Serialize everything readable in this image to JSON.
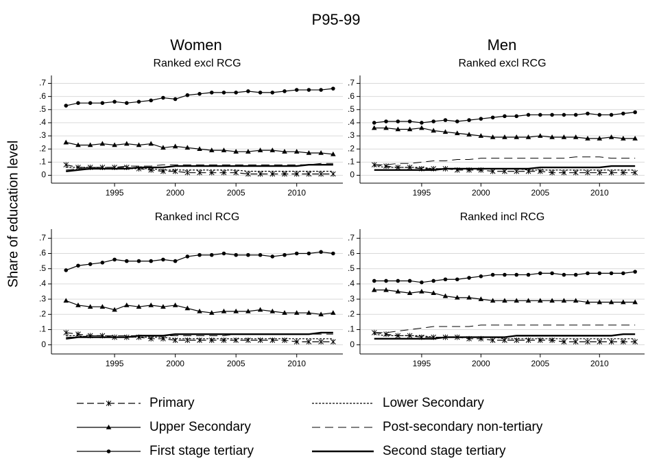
{
  "title": "P95-99",
  "ylabel": "Share of education level",
  "columns": [
    "Women",
    "Men"
  ],
  "legend": [
    {
      "name": "Primary",
      "color": "#000000",
      "line": "dash",
      "marker": "x"
    },
    {
      "name": "Lower Secondary",
      "color": "#000000",
      "line": "dot"
    },
    {
      "name": "Upper Secondary",
      "color": "#000000",
      "line": "solid",
      "marker": "triangle"
    },
    {
      "name": "Post-secondary non-tertiary",
      "color": "#000000",
      "line": "longdash"
    },
    {
      "name": "First stage tertiary",
      "color": "#000000",
      "line": "solid",
      "marker": "circle"
    },
    {
      "name": "Second stage tertiary",
      "color": "#000000",
      "line": "thick"
    }
  ],
  "chart_data": [
    {
      "type": "line",
      "subtitle": "Ranked excl RCG",
      "x": [
        1991,
        1992,
        1993,
        1994,
        1995,
        1996,
        1997,
        1998,
        1999,
        2000,
        2001,
        2002,
        2003,
        2004,
        2005,
        2006,
        2007,
        2008,
        2009,
        2010,
        2011,
        2012,
        2013
      ],
      "xlim": [
        1989.8,
        2013.8
      ],
      "xticks": [
        1995,
        2000,
        2005,
        2010
      ],
      "ylim": [
        -0.06,
        0.76
      ],
      "yticks": [
        0,
        {
          "value": 0.1,
          "label": ".1"
        },
        {
          "value": 0.2,
          "label": ".2"
        },
        {
          "value": 0.3,
          "label": ".3"
        },
        {
          "value": 0.4,
          "label": ".4"
        },
        {
          "value": 0.5,
          "label": ".5"
        },
        {
          "value": 0.6,
          "label": ".6"
        },
        {
          "value": 0.7,
          "label": ".7"
        }
      ],
      "grid": true,
      "series": [
        {
          "values": [
            0.08,
            0.06,
            0.06,
            0.06,
            0.06,
            0.06,
            0.05,
            0.04,
            0.03,
            0.03,
            0.02,
            0.02,
            0.02,
            0.02,
            0.02,
            0.01,
            0.01,
            0.01,
            0.01,
            0.01,
            0.01,
            0.01,
            0.01
          ]
        },
        {
          "values": [
            0.06,
            0.06,
            0.06,
            0.05,
            0.05,
            0.05,
            0.05,
            0.05,
            0.04,
            0.04,
            0.04,
            0.04,
            0.04,
            0.04,
            0.04,
            0.03,
            0.03,
            0.03,
            0.03,
            0.03,
            0.03,
            0.03,
            0.03
          ]
        },
        {
          "values": [
            0.25,
            0.23,
            0.23,
            0.24,
            0.23,
            0.24,
            0.23,
            0.24,
            0.21,
            0.22,
            0.21,
            0.2,
            0.19,
            0.19,
            0.18,
            0.18,
            0.19,
            0.19,
            0.18,
            0.18,
            0.17,
            0.17,
            0.16
          ]
        },
        {
          "values": [
            0.04,
            0.05,
            0.06,
            0.06,
            0.06,
            0.07,
            0.07,
            0.07,
            0.08,
            0.08,
            0.08,
            0.08,
            0.08,
            0.08,
            0.08,
            0.08,
            0.08,
            0.08,
            0.08,
            0.08,
            0.08,
            0.09,
            0.09
          ]
        },
        {
          "values": [
            0.53,
            0.55,
            0.55,
            0.55,
            0.56,
            0.55,
            0.56,
            0.57,
            0.59,
            0.58,
            0.61,
            0.62,
            0.63,
            0.63,
            0.63,
            0.64,
            0.63,
            0.63,
            0.64,
            0.65,
            0.65,
            0.65,
            0.66
          ]
        },
        {
          "values": [
            0.03,
            0.04,
            0.05,
            0.05,
            0.05,
            0.05,
            0.06,
            0.06,
            0.06,
            0.07,
            0.07,
            0.07,
            0.07,
            0.07,
            0.07,
            0.07,
            0.07,
            0.07,
            0.07,
            0.07,
            0.08,
            0.08,
            0.08
          ]
        }
      ]
    },
    {
      "type": "line",
      "subtitle": "Ranked excl RCG",
      "x": [
        1991,
        1992,
        1993,
        1994,
        1995,
        1996,
        1997,
        1998,
        1999,
        2000,
        2001,
        2002,
        2003,
        2004,
        2005,
        2006,
        2007,
        2008,
        2009,
        2010,
        2011,
        2012,
        2013
      ],
      "xlim": [
        1989.8,
        2013.8
      ],
      "xticks": [
        1995,
        2000,
        2005,
        2010
      ],
      "ylim": [
        -0.06,
        0.76
      ],
      "yticks": [
        0,
        {
          "value": 0.1,
          "label": ".1"
        },
        {
          "value": 0.2,
          "label": ".2"
        },
        {
          "value": 0.3,
          "label": ".3"
        },
        {
          "value": 0.4,
          "label": ".4"
        },
        {
          "value": 0.5,
          "label": ".5"
        },
        {
          "value": 0.6,
          "label": ".6"
        },
        {
          "value": 0.7,
          "label": ".7"
        }
      ],
      "grid": true,
      "series": [
        {
          "values": [
            0.08,
            0.07,
            0.06,
            0.06,
            0.05,
            0.05,
            0.05,
            0.04,
            0.04,
            0.04,
            0.03,
            0.03,
            0.03,
            0.03,
            0.03,
            0.02,
            0.02,
            0.02,
            0.02,
            0.02,
            0.02,
            0.02,
            0.02
          ]
        },
        {
          "values": [
            0.07,
            0.06,
            0.06,
            0.06,
            0.06,
            0.05,
            0.05,
            0.05,
            0.05,
            0.05,
            0.05,
            0.05,
            0.05,
            0.04,
            0.04,
            0.04,
            0.04,
            0.04,
            0.04,
            0.04,
            0.04,
            0.04,
            0.04
          ]
        },
        {
          "values": [
            0.36,
            0.36,
            0.35,
            0.35,
            0.36,
            0.34,
            0.33,
            0.32,
            0.31,
            0.3,
            0.29,
            0.29,
            0.29,
            0.29,
            0.3,
            0.29,
            0.29,
            0.29,
            0.28,
            0.28,
            0.29,
            0.28,
            0.28
          ]
        },
        {
          "values": [
            0.08,
            0.08,
            0.09,
            0.09,
            0.1,
            0.11,
            0.11,
            0.12,
            0.12,
            0.13,
            0.13,
            0.13,
            0.13,
            0.13,
            0.13,
            0.13,
            0.13,
            0.14,
            0.14,
            0.14,
            0.13,
            0.13,
            0.13
          ]
        },
        {
          "values": [
            0.4,
            0.41,
            0.41,
            0.41,
            0.4,
            0.41,
            0.42,
            0.41,
            0.42,
            0.43,
            0.44,
            0.45,
            0.45,
            0.46,
            0.46,
            0.46,
            0.46,
            0.46,
            0.47,
            0.46,
            0.46,
            0.47,
            0.48
          ]
        },
        {
          "values": [
            0.04,
            0.04,
            0.04,
            0.04,
            0.04,
            0.04,
            0.05,
            0.05,
            0.05,
            0.05,
            0.05,
            0.05,
            0.05,
            0.05,
            0.06,
            0.06,
            0.06,
            0.06,
            0.06,
            0.06,
            0.07,
            0.07,
            0.07
          ]
        }
      ]
    },
    {
      "type": "line",
      "subtitle": "Ranked incl RCG",
      "x": [
        1991,
        1992,
        1993,
        1994,
        1995,
        1996,
        1997,
        1998,
        1999,
        2000,
        2001,
        2002,
        2003,
        2004,
        2005,
        2006,
        2007,
        2008,
        2009,
        2010,
        2011,
        2012,
        2013
      ],
      "xlim": [
        1989.8,
        2013.8
      ],
      "xticks": [
        1995,
        2000,
        2005,
        2010
      ],
      "ylim": [
        -0.06,
        0.76
      ],
      "yticks": [
        0,
        {
          "value": 0.1,
          "label": ".1"
        },
        {
          "value": 0.2,
          "label": ".2"
        },
        {
          "value": 0.3,
          "label": ".3"
        },
        {
          "value": 0.4,
          "label": ".4"
        },
        {
          "value": 0.5,
          "label": ".5"
        },
        {
          "value": 0.6,
          "label": ".6"
        },
        {
          "value": 0.7,
          "label": ".7"
        }
      ],
      "grid": true,
      "series": [
        {
          "values": [
            0.08,
            0.07,
            0.06,
            0.06,
            0.05,
            0.05,
            0.05,
            0.04,
            0.04,
            0.03,
            0.03,
            0.03,
            0.03,
            0.03,
            0.03,
            0.03,
            0.03,
            0.03,
            0.03,
            0.02,
            0.02,
            0.02,
            0.02
          ]
        },
        {
          "values": [
            0.06,
            0.06,
            0.05,
            0.05,
            0.05,
            0.05,
            0.05,
            0.05,
            0.05,
            0.04,
            0.04,
            0.04,
            0.04,
            0.04,
            0.04,
            0.04,
            0.04,
            0.04,
            0.04,
            0.04,
            0.04,
            0.04,
            0.04
          ]
        },
        {
          "values": [
            0.29,
            0.26,
            0.25,
            0.25,
            0.23,
            0.26,
            0.25,
            0.26,
            0.25,
            0.26,
            0.24,
            0.22,
            0.21,
            0.22,
            0.22,
            0.22,
            0.23,
            0.22,
            0.21,
            0.21,
            0.21,
            0.2,
            0.21
          ]
        },
        {
          "values": [
            0.05,
            0.05,
            0.06,
            0.06,
            0.06,
            0.06,
            0.06,
            0.06,
            0.06,
            0.06,
            0.06,
            0.06,
            0.06,
            0.06,
            0.07,
            0.07,
            0.07,
            0.07,
            0.07,
            0.07,
            0.07,
            0.07,
            0.07
          ]
        },
        {
          "values": [
            0.49,
            0.52,
            0.53,
            0.54,
            0.56,
            0.55,
            0.55,
            0.55,
            0.56,
            0.55,
            0.58,
            0.59,
            0.59,
            0.6,
            0.59,
            0.59,
            0.59,
            0.58,
            0.59,
            0.6,
            0.6,
            0.61,
            0.6
          ]
        },
        {
          "values": [
            0.04,
            0.05,
            0.05,
            0.05,
            0.05,
            0.05,
            0.06,
            0.06,
            0.06,
            0.07,
            0.07,
            0.07,
            0.07,
            0.07,
            0.07,
            0.07,
            0.07,
            0.07,
            0.07,
            0.07,
            0.07,
            0.08,
            0.08
          ]
        }
      ]
    },
    {
      "type": "line",
      "subtitle": "Ranked incl RCG",
      "x": [
        1991,
        1992,
        1993,
        1994,
        1995,
        1996,
        1997,
        1998,
        1999,
        2000,
        2001,
        2002,
        2003,
        2004,
        2005,
        2006,
        2007,
        2008,
        2009,
        2010,
        2011,
        2012,
        2013
      ],
      "xlim": [
        1989.8,
        2013.8
      ],
      "xticks": [
        1995,
        2000,
        2005,
        2010
      ],
      "ylim": [
        -0.06,
        0.76
      ],
      "yticks": [
        0,
        {
          "value": 0.1,
          "label": ".1"
        },
        {
          "value": 0.2,
          "label": ".2"
        },
        {
          "value": 0.3,
          "label": ".3"
        },
        {
          "value": 0.4,
          "label": ".4"
        },
        {
          "value": 0.5,
          "label": ".5"
        },
        {
          "value": 0.6,
          "label": ".6"
        },
        {
          "value": 0.7,
          "label": ".7"
        }
      ],
      "grid": true,
      "series": [
        {
          "values": [
            0.08,
            0.07,
            0.06,
            0.06,
            0.05,
            0.05,
            0.05,
            0.05,
            0.04,
            0.04,
            0.03,
            0.03,
            0.03,
            0.03,
            0.03,
            0.03,
            0.02,
            0.02,
            0.02,
            0.02,
            0.02,
            0.02,
            0.02
          ]
        },
        {
          "values": [
            0.07,
            0.06,
            0.06,
            0.06,
            0.06,
            0.05,
            0.05,
            0.05,
            0.05,
            0.05,
            0.05,
            0.04,
            0.04,
            0.04,
            0.04,
            0.04,
            0.04,
            0.04,
            0.04,
            0.04,
            0.04,
            0.04,
            0.04
          ]
        },
        {
          "values": [
            0.36,
            0.36,
            0.35,
            0.34,
            0.35,
            0.34,
            0.32,
            0.31,
            0.31,
            0.3,
            0.29,
            0.29,
            0.29,
            0.29,
            0.29,
            0.29,
            0.29,
            0.29,
            0.28,
            0.28,
            0.28,
            0.28,
            0.28
          ]
        },
        {
          "values": [
            0.08,
            0.08,
            0.09,
            0.1,
            0.11,
            0.12,
            0.12,
            0.12,
            0.12,
            0.13,
            0.13,
            0.13,
            0.13,
            0.13,
            0.13,
            0.13,
            0.13,
            0.13,
            0.13,
            0.13,
            0.13,
            0.13,
            0.13
          ]
        },
        {
          "values": [
            0.42,
            0.42,
            0.42,
            0.42,
            0.41,
            0.42,
            0.43,
            0.43,
            0.44,
            0.45,
            0.46,
            0.46,
            0.46,
            0.46,
            0.47,
            0.47,
            0.46,
            0.46,
            0.47,
            0.47,
            0.47,
            0.47,
            0.48
          ]
        },
        {
          "values": [
            0.04,
            0.04,
            0.04,
            0.04,
            0.04,
            0.04,
            0.05,
            0.05,
            0.05,
            0.05,
            0.05,
            0.05,
            0.06,
            0.06,
            0.06,
            0.06,
            0.06,
            0.06,
            0.06,
            0.06,
            0.06,
            0.07,
            0.07
          ]
        }
      ]
    }
  ]
}
